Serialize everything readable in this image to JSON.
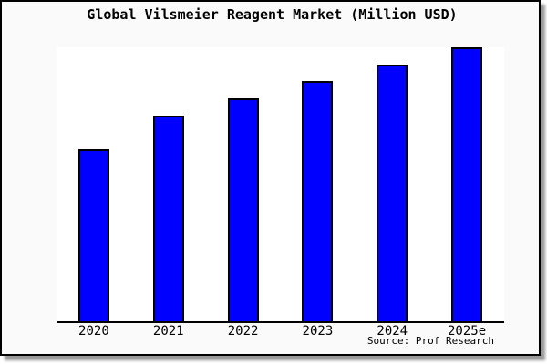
{
  "window": {
    "background": "#fafafa",
    "plot_background": "#ffffff",
    "frame_border_color": "#000000",
    "shadow_color": "#999999"
  },
  "chart_data": {
    "type": "bar",
    "title": "Global Vilsmeier Reagent Market (Million USD)",
    "categories": [
      "2020",
      "2021",
      "2022",
      "2023",
      "2024",
      "2025e"
    ],
    "values": [
      62.8,
      75.1,
      81.4,
      87.7,
      93.7,
      100
    ],
    "values_note": "relative bar heights read from pixels, indexed to 2025e = 100; chart shows no y-axis tick labels",
    "xlabel": "",
    "ylabel": "",
    "ylim": [
      0,
      100
    ],
    "grid": false,
    "legend": "none",
    "bar_color": "#0000ff",
    "bar_edge_color": "#000000",
    "axis_line_color": "#000000",
    "source_label": "Source: Prof Research"
  }
}
